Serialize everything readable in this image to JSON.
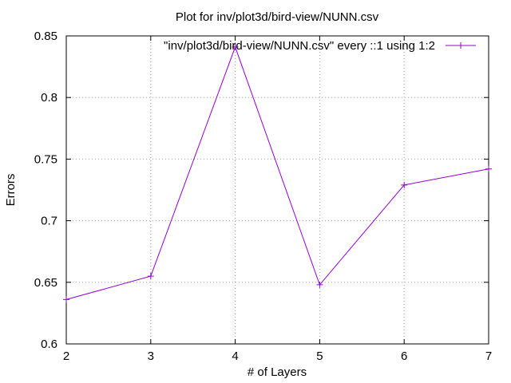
{
  "chart_data": {
    "type": "line",
    "title": "Plot for inv/plot3d/bird-view/NUNN.csv",
    "xlabel": "# of Layers",
    "ylabel": "Errors",
    "xlim": [
      2,
      7
    ],
    "ylim": [
      0.6,
      0.85
    ],
    "x_ticks": [
      "2",
      "3",
      "4",
      "5",
      "6",
      "7"
    ],
    "y_ticks": [
      "0.6",
      "0.65",
      "0.7",
      "0.75",
      "0.8",
      "0.85"
    ],
    "grid": true,
    "legend_position": "top-right",
    "series": [
      {
        "name": "\"inv/plot3d/bird-view/NUNN.csv\" every ::1 using 1:2",
        "color": "#9400d3",
        "marker": "plus",
        "x": [
          2,
          3,
          4,
          5,
          6,
          7
        ],
        "values": [
          0.636,
          0.655,
          0.841,
          0.648,
          0.729,
          0.742
        ]
      }
    ]
  }
}
